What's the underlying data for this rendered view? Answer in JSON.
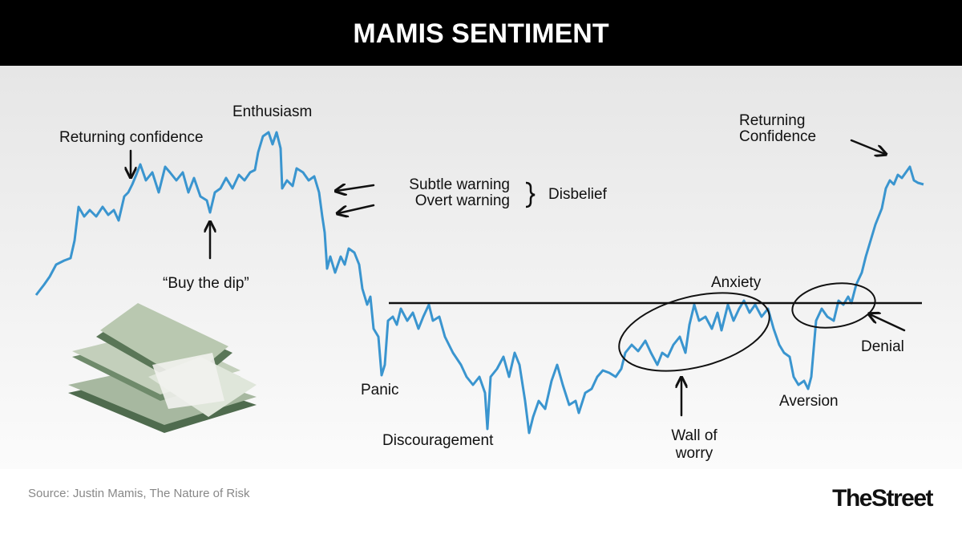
{
  "header": {
    "title": "MAMIS SENTIMENT"
  },
  "annotations": {
    "returning_confidence_1": "Returning confidence",
    "enthusiasm": "Enthusiasm",
    "subtle_warning": "Subtle warning",
    "overt_warning": "Overt warning",
    "disbelief": "Disbelief",
    "buy_the_dip": "“Buy the dip”",
    "panic": "Panic",
    "discouragement": "Discouragement",
    "anxiety": "Anxiety",
    "wall_of_worry": [
      "Wall of",
      "worry"
    ],
    "aversion": "Aversion",
    "denial": "Denial",
    "returning_confidence_2": [
      "Returning",
      "Confidence"
    ]
  },
  "footer": {
    "source": "Source: Justin Mamis, The Nature of Risk",
    "brand": "TheStreet"
  }
}
